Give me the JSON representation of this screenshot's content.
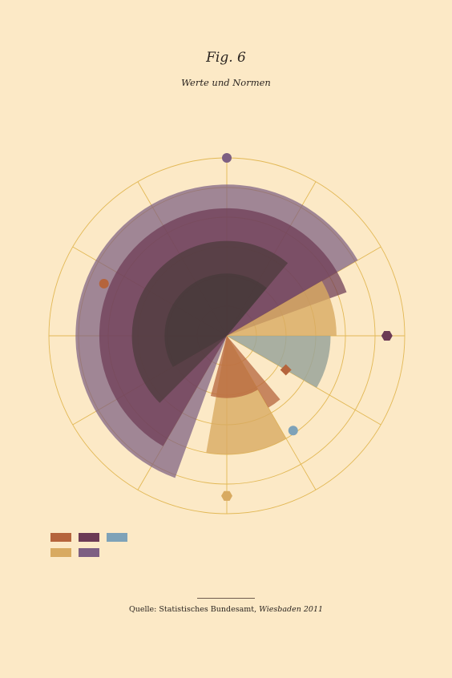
{
  "figure": {
    "title": "Fig. 6",
    "subtitle": "Werte und Normen"
  },
  "source": {
    "prefix": "Quelle: Statistisches Bundesamt,",
    "place_year": "Wiesbaden 2011"
  },
  "colors": {
    "background": "#fce9c6",
    "grid": "#e2b855",
    "rust": "#b5643c",
    "plum": "#6c3a55",
    "steel_blue": "#7ea2b8",
    "sand": "#d8aa61",
    "mauve": "#7d5f82"
  },
  "chart_data": {
    "type": "radial-bar",
    "title": "Fig. 6",
    "subtitle": "Werte und Normen",
    "rings": 6,
    "spokes": 12,
    "value_max": 6,
    "series": [
      {
        "color": "#7d5f82",
        "opacity": 0.72,
        "segments": [
          {
            "from_deg": 200,
            "to_deg": 420,
            "value": 5.1
          }
        ]
      },
      {
        "color": "#6c3a55",
        "opacity": 0.72,
        "segments": [
          {
            "from_deg": 210,
            "to_deg": 430,
            "value": 4.3
          }
        ]
      },
      {
        "color": "#d8aa61",
        "opacity": 0.8,
        "segments": [
          {
            "from_deg": 60,
            "to_deg": 90,
            "value": 3.7
          },
          {
            "from_deg": 150,
            "to_deg": 190,
            "value": 4.0
          }
        ]
      },
      {
        "color": "#9aa59a",
        "opacity": 0.85,
        "segments": [
          {
            "from_deg": 90,
            "to_deg": 120,
            "value": 3.5
          }
        ]
      },
      {
        "color": "#b5643c",
        "opacity": 0.75,
        "segments": [
          {
            "from_deg": 140,
            "to_deg": 150,
            "value": 2.8
          },
          {
            "from_deg": 150,
            "to_deg": 195,
            "value": 2.1
          }
        ]
      },
      {
        "color": "#4c3a3a",
        "opacity": 0.7,
        "segments": [
          {
            "from_deg": 225,
            "to_deg": 400,
            "value": 3.2
          }
        ]
      },
      {
        "color": "#3e3634",
        "opacity": 0.5,
        "segments": [
          {
            "from_deg": 240,
            "to_deg": 400,
            "value": 2.1
          }
        ]
      }
    ],
    "markers": [
      {
        "shape": "circle",
        "color": "#7d5f82",
        "angle_deg": 0,
        "value": 6.0
      },
      {
        "shape": "hexagon",
        "color": "#6c3a55",
        "angle_deg": 90,
        "value": 5.4
      },
      {
        "shape": "diamond",
        "color": "#b5643c",
        "angle_deg": 120,
        "value": 2.3
      },
      {
        "shape": "circle",
        "color": "#7ea2b8",
        "angle_deg": 145,
        "value": 3.9
      },
      {
        "shape": "hexagon",
        "color": "#d8aa61",
        "angle_deg": 180,
        "value": 5.4
      },
      {
        "shape": "circle",
        "color": "#b5643c",
        "angle_deg": 293,
        "value": 4.5
      }
    ],
    "legend": [
      {
        "color": "#b5643c"
      },
      {
        "color": "#6c3a55"
      },
      {
        "color": "#7ea2b8"
      },
      {
        "color": "#d8aa61"
      },
      {
        "color": "#7d5f82"
      }
    ]
  }
}
